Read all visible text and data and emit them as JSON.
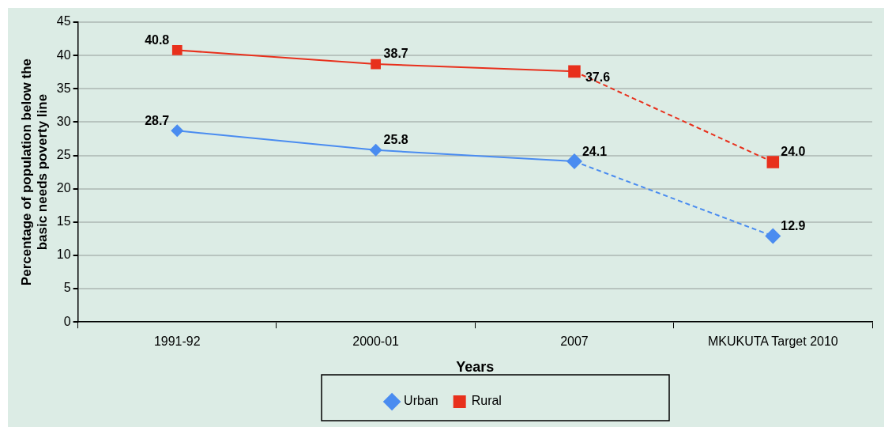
{
  "chart_data": {
    "type": "line",
    "xlabel": "Years",
    "ylabel": "Percentage of population below the\nbasic needs poverty line",
    "categories": [
      "1991-92",
      "2000-01",
      "2007",
      "MKUKUTA Target 2010"
    ],
    "series": [
      {
        "name": "Urban",
        "color": "#4a8cf0",
        "marker": "diamond",
        "values": [
          28.7,
          25.8,
          24.1,
          null
        ],
        "value_labels": [
          "28.7",
          "25.8",
          "24.1",
          null
        ]
      },
      {
        "name": "Rural",
        "color": "#e8301c",
        "marker": "square",
        "values": [
          40.8,
          38.7,
          37.6,
          null
        ],
        "value_labels": [
          "40.8",
          "38.7",
          "37.6",
          null
        ]
      },
      {
        "color": "#4a8cf0",
        "marker": "diamond",
        "line_style": "dashed",
        "values": [
          null,
          null,
          24.1,
          12.9
        ],
        "value_labels": [
          null,
          null,
          null,
          "12.9"
        ]
      },
      {
        "color": "#e8301c",
        "marker": "square",
        "line_style": "dashed",
        "values": [
          null,
          null,
          37.6,
          24.0
        ],
        "value_labels": [
          null,
          null,
          null,
          "24.0"
        ]
      }
    ],
    "ylim": [
      0,
      45
    ],
    "yticks": [
      0,
      5,
      10,
      15,
      20,
      25,
      30,
      35,
      40,
      45
    ],
    "grid": "y",
    "legend": "bottom"
  }
}
